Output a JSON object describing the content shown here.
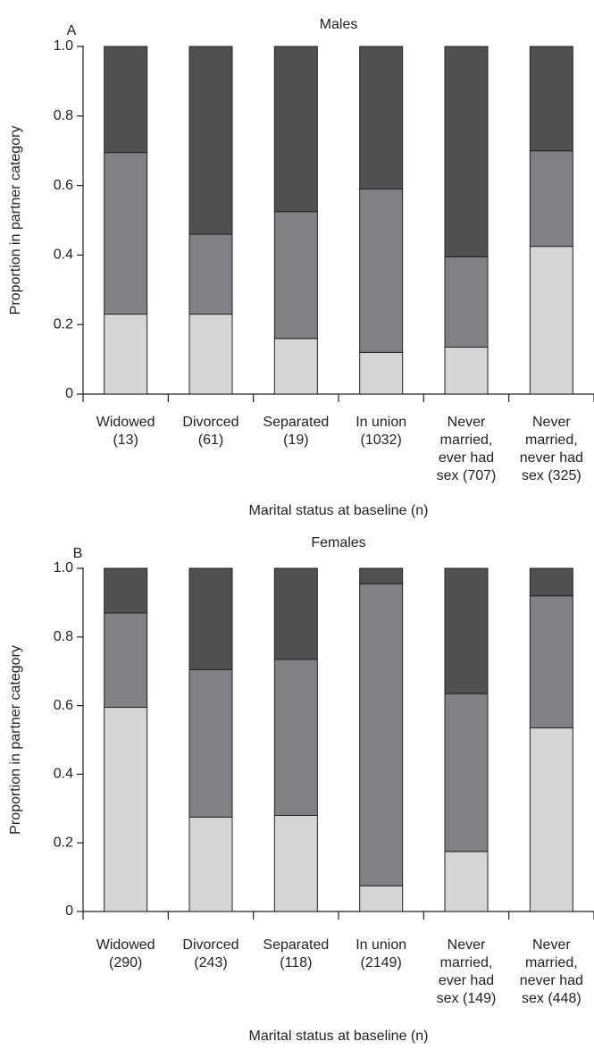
{
  "chart_data": [
    {
      "type": "bar",
      "stacked": true,
      "panel_label": "A",
      "title": "Males",
      "ylabel": "Proportion in partner category",
      "xlabel": "Marital status at baseline (n)",
      "categories": [
        [
          "Widowed",
          "(13)"
        ],
        [
          "Divorced",
          "(61)"
        ],
        [
          "Separated",
          "(19)"
        ],
        [
          "In union",
          "(1032)"
        ],
        [
          "Never",
          "married,",
          "ever had",
          "sex (707)"
        ],
        [
          "Never",
          "married,",
          "never had",
          "sex (325)"
        ]
      ],
      "series": [
        {
          "color": "#d4d5d7",
          "values": [
            0.23,
            0.23,
            0.16,
            0.12,
            0.135,
            0.425
          ]
        },
        {
          "color": "#808184",
          "values": [
            0.465,
            0.23,
            0.365,
            0.47,
            0.26,
            0.275
          ]
        },
        {
          "color": "#505153",
          "values": [
            0.305,
            0.54,
            0.475,
            0.41,
            0.605,
            0.3
          ]
        }
      ],
      "ylim": [
        0,
        1
      ],
      "yticks": [
        0,
        0.2,
        0.4,
        0.6,
        0.8,
        {
          "value": 1,
          "label": "1.0"
        }
      ]
    },
    {
      "type": "bar",
      "stacked": true,
      "panel_label": "B",
      "title": "Females",
      "ylabel": "Proportion in partner category",
      "xlabel": "Marital status at baseline (n)",
      "categories": [
        [
          "Widowed",
          "(290)"
        ],
        [
          "Divorced",
          "(243)"
        ],
        [
          "Separated",
          "(118)"
        ],
        [
          "In union",
          "(2149)"
        ],
        [
          "Never",
          "married,",
          "ever had",
          "sex (149)"
        ],
        [
          "Never",
          "married,",
          "never had",
          "sex (448)"
        ]
      ],
      "series": [
        {
          "color": "#d4d5d7",
          "values": [
            0.595,
            0.275,
            0.28,
            0.075,
            0.175,
            0.535
          ]
        },
        {
          "color": "#808184",
          "values": [
            0.275,
            0.43,
            0.455,
            0.88,
            0.46,
            0.385
          ]
        },
        {
          "color": "#505153",
          "values": [
            0.13,
            0.295,
            0.265,
            0.045,
            0.365,
            0.08
          ]
        }
      ],
      "ylim": [
        0,
        1
      ],
      "yticks": [
        0,
        0.2,
        0.4,
        0.6,
        0.8,
        {
          "value": 1,
          "label": "1.0"
        }
      ]
    }
  ]
}
